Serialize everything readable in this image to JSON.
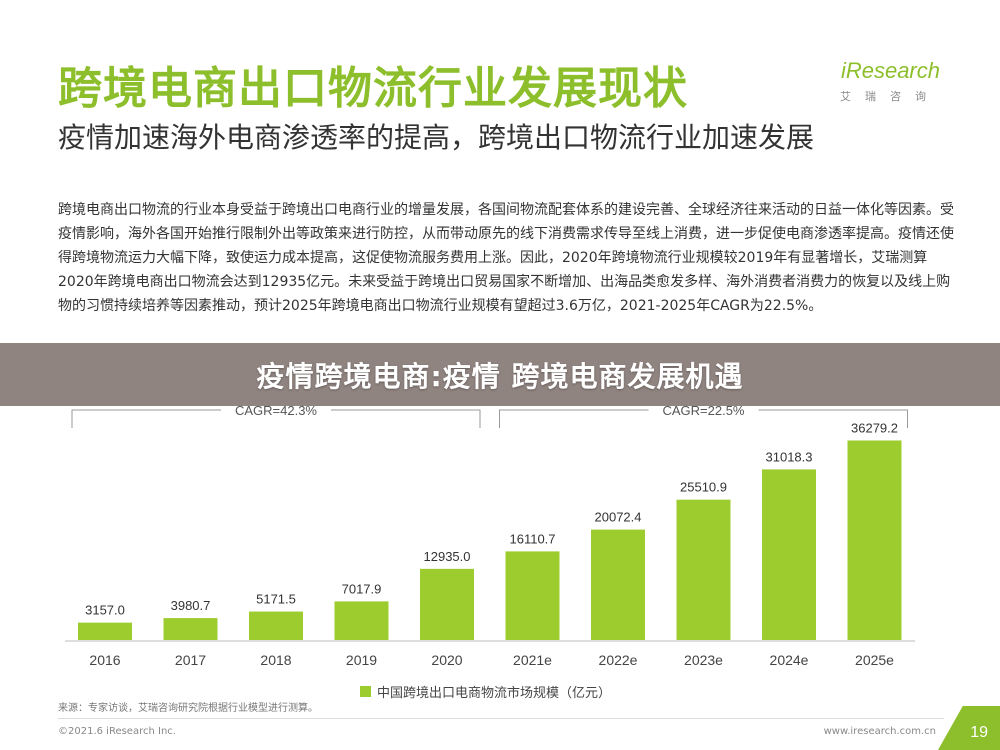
{
  "header": {
    "title": "跨境电商出口物流行业发展现状",
    "brand": "iResearch",
    "brand_sub": "艾瑞咨询"
  },
  "subtitle": "疫情加速海外电商渗透率的提高，跨境出口物流行业加速发展",
  "paragraph": "跨境电商出口物流的行业本身受益于跨境出口电商行业的增量发展，各国间物流配套体系的建设完善、全球经济往来活动的日益一体化等因素。受疫情影响，海外各国开始推行限制外出等政策来进行防控，从而带动原先的线下消费需求传导至线上消费，进一步促使电商渗透率提高。疫情还使得跨境物流运力大幅下降，致使运力成本提高，这促使物流服务费用上涨。因此，2020年跨境物流行业规模较2019年有显著增长，艾瑞测算2020年跨境电商出口物流会达到12935亿元。未来受益于跨境出口贸易国家不断增加、出海品类愈发多样、海外消费者消费力的恢复以及线上购物的习惯持续培养等因素推动，预计2025年跨境电商出口物流行业规模有望超过3.6万亿，2021-2025年CAGR为22.5%。",
  "banner": "疫情跨境电商:疫情 跨境电商发展机遇",
  "chart_data": {
    "type": "bar",
    "categories": [
      "2016",
      "2017",
      "2018",
      "2019",
      "2020",
      "2021e",
      "2022e",
      "2023e",
      "2024e",
      "2025e"
    ],
    "values": [
      3157.0,
      3980.7,
      5171.5,
      7017.9,
      12935.0,
      16110.7,
      20072.4,
      25510.9,
      31018.3,
      36279.2
    ],
    "value_labels": [
      "3157.0",
      "3980.7",
      "5171.5",
      "7017.9",
      "12935.0",
      "16110.7",
      "20072.4",
      "25510.9",
      "31018.3",
      "36279.2"
    ],
    "ylim": [
      0,
      40000
    ],
    "bar_color": "#9ccc2e",
    "legend": "中国跨境出口电商物流市场规模（亿元）",
    "legend_position": "bottom",
    "annotations": [
      {
        "label": "CAGR=42.3%",
        "from": "2016",
        "to": "2020"
      },
      {
        "label": "CAGR=22.5%",
        "from": "2021e",
        "to": "2025e"
      }
    ]
  },
  "footer": {
    "source": "来源：专家访谈，艾瑞咨询研究院根据行业模型进行测算。",
    "copyright": "©2021.6 iResearch Inc.",
    "site": "www.iresearch.com.cn",
    "page": "19"
  }
}
